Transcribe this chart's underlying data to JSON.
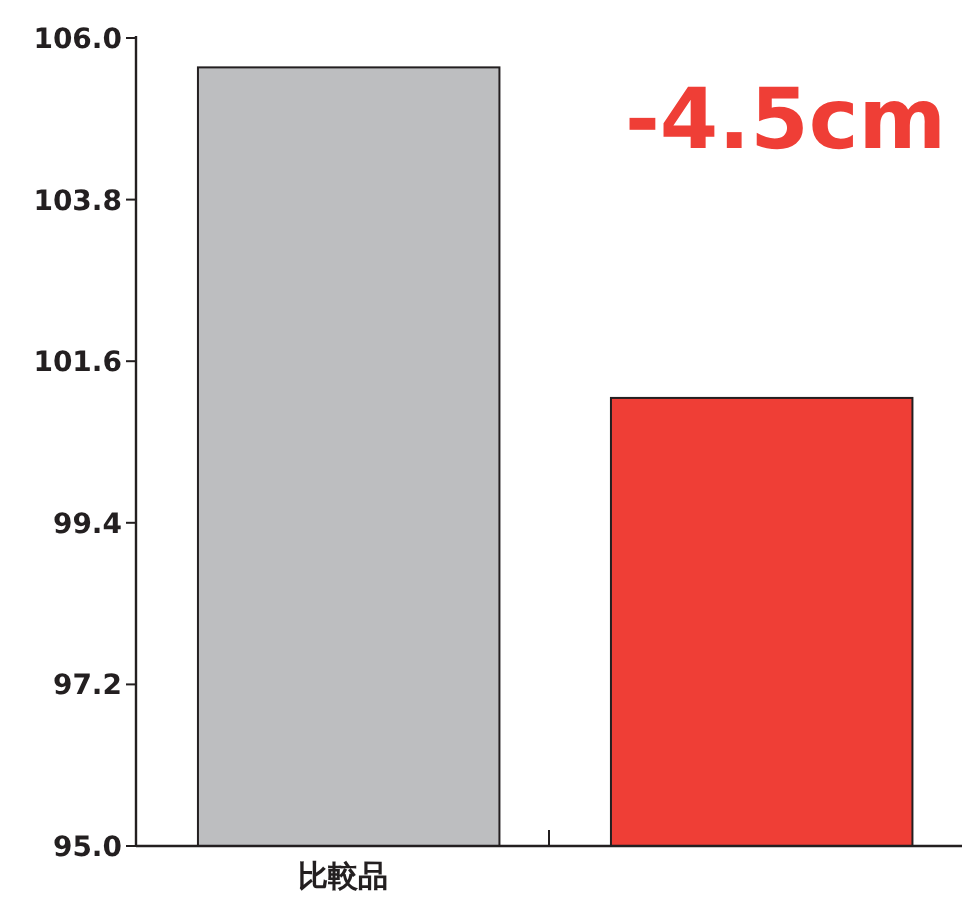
{
  "chart_data": {
    "type": "bar",
    "categories": [
      "比較品",
      null
    ],
    "colors": [
      "#bdbec0",
      "#ef3e36"
    ],
    "values": [
      105.6,
      101.1
    ],
    "ylim": [
      95.0,
      106.0
    ],
    "yticks": [
      {
        "value": 95.0,
        "label": "95.0"
      },
      {
        "value": 97.2,
        "label": "97.2"
      },
      {
        "value": 99.4,
        "label": "99.4"
      },
      {
        "value": 101.6,
        "label": "101.6"
      },
      {
        "value": 103.8,
        "label": "103.8"
      },
      {
        "value": 106.0,
        "label": "106.0"
      }
    ],
    "annotations": [
      "-4.5cm"
    ]
  }
}
